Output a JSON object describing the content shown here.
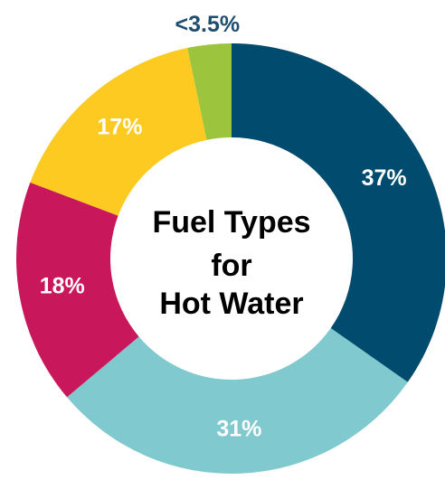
{
  "chart_data": {
    "type": "donut",
    "title": [
      "Fuel Types",
      "for",
      "Hot Water"
    ],
    "values": [
      37,
      31,
      18,
      17,
      3.5
    ],
    "value_labels": [
      "37%",
      "31%",
      "18%",
      "17%",
      "<3.5%"
    ],
    "colors": [
      "#004b6e",
      "#80c9ce",
      "#c8185b",
      "#fdca22",
      "#9dc43d"
    ]
  }
}
